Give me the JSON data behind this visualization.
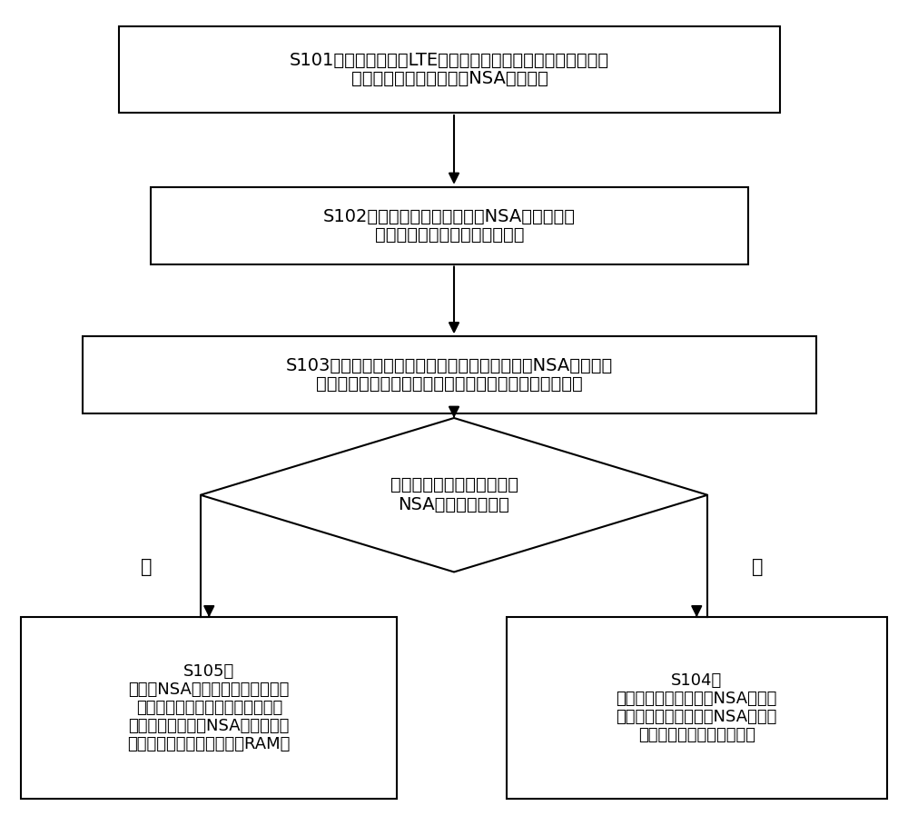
{
  "bg_color": "#ffffff",
  "box_color": "#ffffff",
  "box_edge_color": "#000000",
  "arrow_color": "#000000",
  "text_color": "#000000",
  "s101_text_line1": "S101、移动终端发现LTE小区后，通过解码小区的系统消息时",
  "s101_text_line2": "确认判断当前小区是否为NSA锁点小区",
  "s102_text_line1": "S102、判断结果表明该小区是NSA锁点小区，",
  "s102_text_line2": "则获取当前移动终端的位置信息",
  "s103_text_line1": "S103、移动终端将当前的位置信息，通过和历史NSA锁点小区",
  "s103_text_line2": "列表中各个锁点小区对应的位置信息和小区信息进行比较",
  "diamond_text_line1": "判断该小区是否存在于历史",
  "diamond_text_line2": "NSA锁点小区列表中",
  "s105_title": "S105、",
  "s105_line1": "将历史NSA锁点小区列表中该小区",
  "s105_line2": "对应的位置信息更新为当前的位置",
  "s105_line3": "信息，并将该历史NSA锁点小区信",
  "s105_line4": "息列表储存在该移动终端的RAM中",
  "s104_title": "S104、",
  "s104_line1": "将该锁点小区加入历史NSA锁点小",
  "s104_line2": "区列表中，并将该历史NSA锁点小",
  "s104_line3": "区信息列表保存在移动终端",
  "yes_text": "是",
  "no_text": "否"
}
